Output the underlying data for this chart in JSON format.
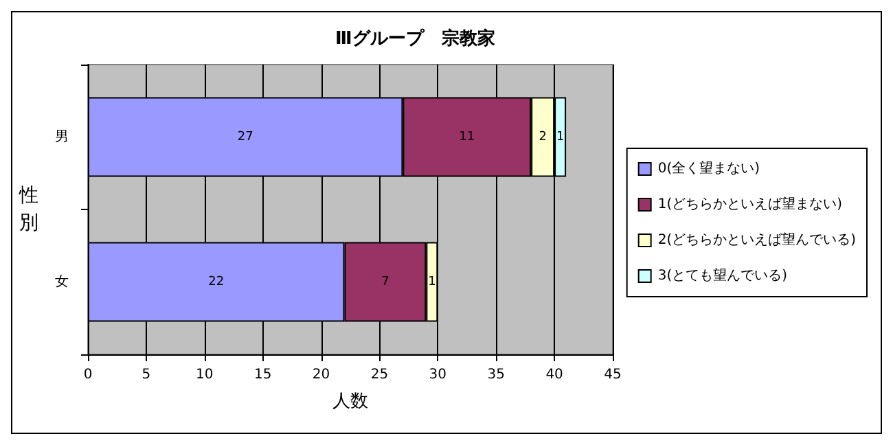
{
  "chart_data": {
    "type": "bar",
    "orientation": "horizontal",
    "stacked": true,
    "title": "Ⅲグループ　宗教家",
    "xlabel": "人数",
    "ylabel": "性別",
    "categories": [
      "男",
      "女"
    ],
    "series": [
      {
        "name": "0(全く望まない)",
        "color": "#9999ff",
        "values": [
          27,
          22
        ]
      },
      {
        "name": "1(どちらかといえば望まない)",
        "color": "#993366",
        "values": [
          11,
          7
        ]
      },
      {
        "name": "2(どちらかといえば望んでいる)",
        "color": "#ffffcc",
        "values": [
          2,
          1
        ]
      },
      {
        "name": "3(とても望んでいる)",
        "color": "#ccffff",
        "values": [
          1,
          null
        ]
      }
    ],
    "xlim": [
      0,
      45
    ],
    "xticks": [
      0,
      5,
      10,
      15,
      20,
      25,
      30,
      35,
      40,
      45
    ],
    "grid": "x",
    "legend": "right",
    "data_labels": true
  }
}
